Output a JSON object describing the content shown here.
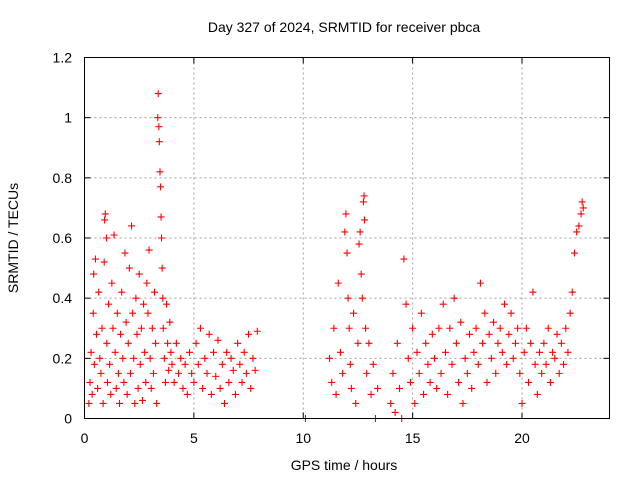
{
  "chart_data": {
    "type": "scatter",
    "title": "Day 327 of 2024, SRMTID for receiver pbca",
    "xlabel": "GPS time / hours",
    "ylabel": "SRMTID / TECUs",
    "xlim": [
      0,
      24
    ],
    "ylim": [
      0,
      1.2
    ],
    "x_ticks": [
      0,
      5,
      10,
      15,
      20
    ],
    "x_tick_labels": [
      "0",
      "5",
      "10",
      "15",
      "20"
    ],
    "y_ticks": [
      0,
      0.2,
      0.4,
      0.6,
      0.8,
      1,
      1.2
    ],
    "y_tick_labels": [
      "0",
      "0.2",
      "0.4",
      "0.6",
      "0.8",
      "1",
      "1.2"
    ],
    "grid": true,
    "marker": "plus",
    "color": "#ff0000",
    "series": [
      {
        "points": [
          [
            0.2,
            0.05
          ],
          [
            0.25,
            0.12
          ],
          [
            0.3,
            0.22
          ],
          [
            0.35,
            0.08
          ],
          [
            0.4,
            0.35
          ],
          [
            0.42,
            0.48
          ],
          [
            0.45,
            0.18
          ],
          [
            0.5,
            0.53
          ],
          [
            0.55,
            0.28
          ],
          [
            0.6,
            0.1
          ],
          [
            0.65,
            0.42
          ],
          [
            0.7,
            0.2
          ],
          [
            0.75,
            0.15
          ],
          [
            0.8,
            0.3
          ],
          [
            0.85,
            0.05
          ],
          [
            0.9,
            0.52
          ],
          [
            0.92,
            0.66
          ],
          [
            0.95,
            0.68
          ],
          [
            1.0,
            0.6
          ],
          [
            1.02,
            0.25
          ],
          [
            1.05,
            0.12
          ],
          [
            1.1,
            0.38
          ],
          [
            1.15,
            0.18
          ],
          [
            1.2,
            0.08
          ],
          [
            1.25,
            0.45
          ],
          [
            1.3,
            0.3
          ],
          [
            1.35,
            0.61
          ],
          [
            1.4,
            0.22
          ],
          [
            1.45,
            0.1
          ],
          [
            1.5,
            0.35
          ],
          [
            1.55,
            0.15
          ],
          [
            1.6,
            0.05
          ],
          [
            1.65,
            0.28
          ],
          [
            1.7,
            0.42
          ],
          [
            1.75,
            0.2
          ],
          [
            1.8,
            0.12
          ],
          [
            1.85,
            0.55
          ],
          [
            1.9,
            0.32
          ],
          [
            1.95,
            0.08
          ],
          [
            2.0,
            0.25
          ],
          [
            2.05,
            0.5
          ],
          [
            2.1,
            0.15
          ],
          [
            2.15,
            0.64
          ],
          [
            2.2,
            0.35
          ],
          [
            2.25,
            0.2
          ],
          [
            2.3,
            0.05
          ],
          [
            2.35,
            0.4
          ],
          [
            2.4,
            0.28
          ],
          [
            2.45,
            0.1
          ],
          [
            2.5,
            0.48
          ],
          [
            2.55,
            0.18
          ],
          [
            2.6,
            0.3
          ],
          [
            2.65,
            0.06
          ],
          [
            2.7,
            0.38
          ],
          [
            2.75,
            0.22
          ],
          [
            2.8,
            0.12
          ],
          [
            2.85,
            0.45
          ],
          [
            2.9,
            0.35
          ],
          [
            2.95,
            0.56
          ],
          [
            3.0,
            0.2
          ],
          [
            3.05,
            0.1
          ],
          [
            3.1,
            0.3
          ],
          [
            3.15,
            0.15
          ],
          [
            3.2,
            0.42
          ],
          [
            3.25,
            0.25
          ],
          [
            3.3,
            0.05
          ],
          [
            3.35,
            1.0
          ],
          [
            3.37,
            1.08
          ],
          [
            3.4,
            0.97
          ],
          [
            3.42,
            0.92
          ],
          [
            3.45,
            0.82
          ],
          [
            3.48,
            0.77
          ],
          [
            3.5,
            0.67
          ],
          [
            3.52,
            0.6
          ],
          [
            3.55,
            0.5
          ],
          [
            3.58,
            0.4
          ],
          [
            3.6,
            0.3
          ],
          [
            3.65,
            0.2
          ],
          [
            3.7,
            0.12
          ],
          [
            3.75,
            0.38
          ],
          [
            3.8,
            0.25
          ],
          [
            3.85,
            0.16
          ],
          [
            3.9,
            0.32
          ],
          [
            3.95,
            0.22
          ],
          [
            4.0,
            0.18
          ],
          [
            4.1,
            0.12
          ],
          [
            4.2,
            0.25
          ],
          [
            4.3,
            0.15
          ],
          [
            4.4,
            0.2
          ],
          [
            4.5,
            0.1
          ],
          [
            4.6,
            0.18
          ],
          [
            4.7,
            0.08
          ],
          [
            4.8,
            0.22
          ],
          [
            4.9,
            0.15
          ],
          [
            5.0,
            0.12
          ],
          [
            5.1,
            0.25
          ],
          [
            5.2,
            0.18
          ],
          [
            5.3,
            0.3
          ],
          [
            5.4,
            0.1
          ],
          [
            5.5,
            0.2
          ],
          [
            5.6,
            0.15
          ],
          [
            5.7,
            0.28
          ],
          [
            5.8,
            0.08
          ],
          [
            5.9,
            0.22
          ],
          [
            6.0,
            0.14
          ],
          [
            6.1,
            0.26
          ],
          [
            6.2,
            0.1
          ],
          [
            6.3,
            0.18
          ],
          [
            6.4,
            0.05
          ],
          [
            6.5,
            0.22
          ],
          [
            6.6,
            0.12
          ],
          [
            6.7,
            0.2
          ],
          [
            6.8,
            0.16
          ],
          [
            6.9,
            0.08
          ],
          [
            7.0,
            0.25
          ],
          [
            7.1,
            0.18
          ],
          [
            7.2,
            0.12
          ],
          [
            7.3,
            0.22
          ],
          [
            7.4,
            0.15
          ],
          [
            7.5,
            0.28
          ],
          [
            7.6,
            0.1
          ],
          [
            7.7,
            0.2
          ],
          [
            7.8,
            0.16
          ],
          [
            7.9,
            0.29
          ],
          [
            10.1,
            0.0
          ],
          [
            11.2,
            0.2
          ],
          [
            11.3,
            0.12
          ],
          [
            11.4,
            0.3
          ],
          [
            11.5,
            0.08
          ],
          [
            11.6,
            0.45
          ],
          [
            11.7,
            0.22
          ],
          [
            11.8,
            0.15
          ],
          [
            11.9,
            0.62
          ],
          [
            11.95,
            0.68
          ],
          [
            12.0,
            0.55
          ],
          [
            12.05,
            0.4
          ],
          [
            12.1,
            0.3
          ],
          [
            12.15,
            0.18
          ],
          [
            12.2,
            0.1
          ],
          [
            12.3,
            0.35
          ],
          [
            12.4,
            0.05
          ],
          [
            12.5,
            0.25
          ],
          [
            12.55,
            0.58
          ],
          [
            12.6,
            0.62
          ],
          [
            12.65,
            0.48
          ],
          [
            12.7,
            0.4
          ],
          [
            12.75,
            0.72
          ],
          [
            12.78,
            0.74
          ],
          [
            12.8,
            0.66
          ],
          [
            12.85,
            0.3
          ],
          [
            12.9,
            0.15
          ],
          [
            13.0,
            0.25
          ],
          [
            13.1,
            0.08
          ],
          [
            13.2,
            0.18
          ],
          [
            13.3,
            0.0
          ],
          [
            13.4,
            0.1
          ],
          [
            14.0,
            0.05
          ],
          [
            14.1,
            0.15
          ],
          [
            14.2,
            0.02
          ],
          [
            14.3,
            0.25
          ],
          [
            14.4,
            0.1
          ],
          [
            14.5,
            0.0
          ],
          [
            14.6,
            0.53
          ],
          [
            14.7,
            0.38
          ],
          [
            14.8,
            0.2
          ],
          [
            14.9,
            0.12
          ],
          [
            15.0,
            0.3
          ],
          [
            15.1,
            0.05
          ],
          [
            15.2,
            0.22
          ],
          [
            15.3,
            0.15
          ],
          [
            15.4,
            0.35
          ],
          [
            15.5,
            0.08
          ],
          [
            15.6,
            0.25
          ],
          [
            15.7,
            0.18
          ],
          [
            15.8,
            0.12
          ],
          [
            15.9,
            0.28
          ],
          [
            16.0,
            0.2
          ],
          [
            16.1,
            0.1
          ],
          [
            16.2,
            0.3
          ],
          [
            16.3,
            0.15
          ],
          [
            16.4,
            0.38
          ],
          [
            16.5,
            0.22
          ],
          [
            16.6,
            0.08
          ],
          [
            16.7,
            0.3
          ],
          [
            16.8,
            0.18
          ],
          [
            16.9,
            0.4
          ],
          [
            17.0,
            0.25
          ],
          [
            17.1,
            0.12
          ],
          [
            17.2,
            0.32
          ],
          [
            17.3,
            0.05
          ],
          [
            17.4,
            0.2
          ],
          [
            17.5,
            0.15
          ],
          [
            17.6,
            0.28
          ],
          [
            17.7,
            0.1
          ],
          [
            17.8,
            0.22
          ],
          [
            17.9,
            0.3
          ],
          [
            18.0,
            0.18
          ],
          [
            18.1,
            0.45
          ],
          [
            18.2,
            0.25
          ],
          [
            18.3,
            0.35
          ],
          [
            18.4,
            0.12
          ],
          [
            18.5,
            0.28
          ],
          [
            18.6,
            0.2
          ],
          [
            18.7,
            0.32
          ],
          [
            18.8,
            0.15
          ],
          [
            18.9,
            0.25
          ],
          [
            19.0,
            0.3
          ],
          [
            19.1,
            0.22
          ],
          [
            19.2,
            0.38
          ],
          [
            19.3,
            0.18
          ],
          [
            19.4,
            0.28
          ],
          [
            19.5,
            0.35
          ],
          [
            19.6,
            0.2
          ],
          [
            19.7,
            0.25
          ],
          [
            19.8,
            0.3
          ],
          [
            19.9,
            0.15
          ],
          [
            20.0,
            0.05
          ],
          [
            20.1,
            0.22
          ],
          [
            20.2,
            0.3
          ],
          [
            20.3,
            0.12
          ],
          [
            20.4,
            0.25
          ],
          [
            20.5,
            0.42
          ],
          [
            20.6,
            0.18
          ],
          [
            20.7,
            0.08
          ],
          [
            20.8,
            0.22
          ],
          [
            20.9,
            0.15
          ],
          [
            21.0,
            0.25
          ],
          [
            21.1,
            0.18
          ],
          [
            21.2,
            0.3
          ],
          [
            21.3,
            0.12
          ],
          [
            21.4,
            0.22
          ],
          [
            21.5,
            0.2
          ],
          [
            21.6,
            0.28
          ],
          [
            21.7,
            0.15
          ],
          [
            21.8,
            0.25
          ],
          [
            21.9,
            0.18
          ],
          [
            22.0,
            0.3
          ],
          [
            22.1,
            0.22
          ],
          [
            22.2,
            0.35
          ],
          [
            22.3,
            0.42
          ],
          [
            22.4,
            0.55
          ],
          [
            22.5,
            0.62
          ],
          [
            22.6,
            0.64
          ],
          [
            22.7,
            0.68
          ],
          [
            22.75,
            0.72
          ],
          [
            22.8,
            0.7
          ]
        ]
      }
    ]
  }
}
